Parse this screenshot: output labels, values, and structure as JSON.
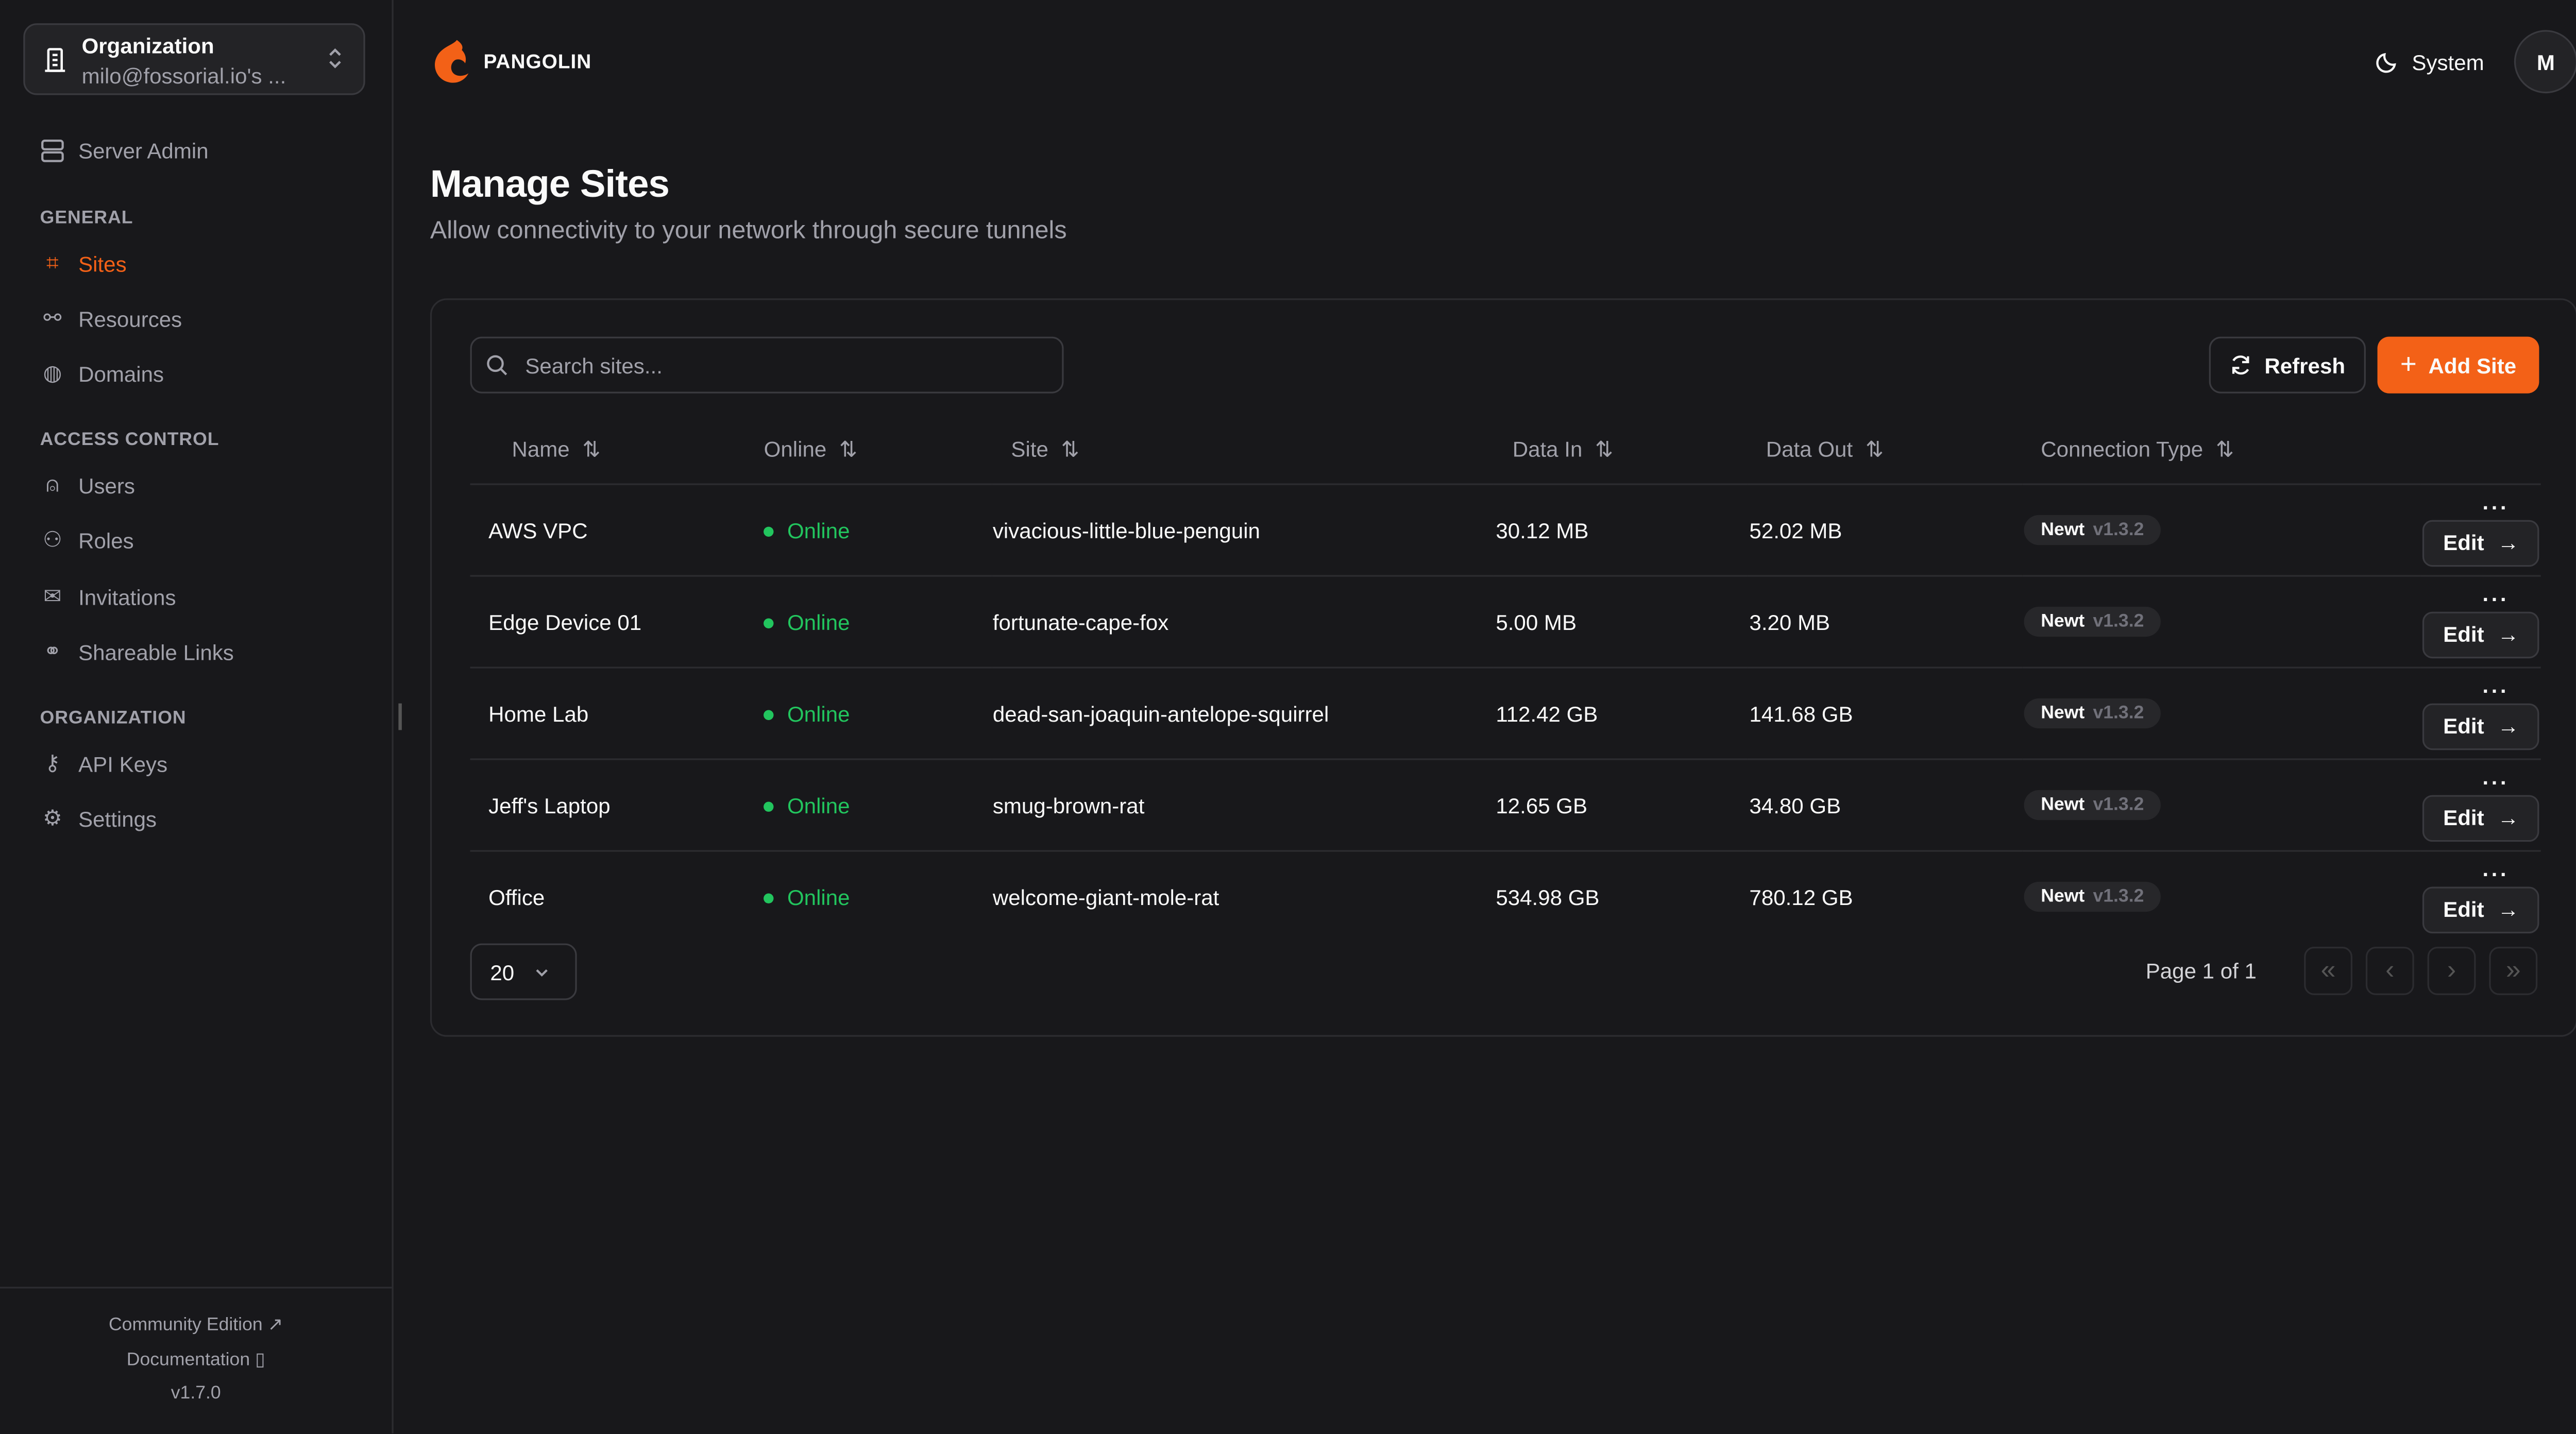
{
  "org": {
    "label": "Organization",
    "value": "milo@fossorial.io's ..."
  },
  "sidebar": {
    "server_admin": "Server Admin",
    "sections": [
      {
        "title": "GENERAL",
        "items": [
          {
            "label": "Sites",
            "icon": "sites-icon",
            "active": true
          },
          {
            "label": "Resources",
            "icon": "resources-icon"
          },
          {
            "label": "Domains",
            "icon": "globe-icon"
          }
        ]
      },
      {
        "title": "ACCESS CONTROL",
        "items": [
          {
            "label": "Users",
            "icon": "user-icon"
          },
          {
            "label": "Roles",
            "icon": "users-icon"
          },
          {
            "label": "Invitations",
            "icon": "mail-icon"
          },
          {
            "label": "Shareable Links",
            "icon": "link-icon"
          }
        ]
      },
      {
        "title": "ORGANIZATION",
        "items": [
          {
            "label": "API Keys",
            "icon": "key-icon"
          },
          {
            "label": "Settings",
            "icon": "gear-icon"
          }
        ]
      }
    ],
    "footer": {
      "community": "Community Edition",
      "docs": "Documentation",
      "version": "v1.7.0"
    }
  },
  "header": {
    "brand": "PANGOLIN",
    "theme": "System",
    "avatar": "M"
  },
  "page": {
    "title": "Manage Sites",
    "subtitle": "Allow connectivity to your network through secure tunnels"
  },
  "toolbar": {
    "search_placeholder": "Search sites...",
    "refresh": "Refresh",
    "add": "Add Site"
  },
  "table": {
    "columns": [
      "Name",
      "Online",
      "Site",
      "Data In",
      "Data Out",
      "Connection Type"
    ],
    "rows": [
      {
        "name": "AWS VPC",
        "online": "Online",
        "site": "vivacious-little-blue-penguin",
        "in": "30.12 MB",
        "out": "52.02 MB",
        "type": "Newt",
        "version": "v1.3.2"
      },
      {
        "name": "Edge Device 01",
        "online": "Online",
        "site": "fortunate-cape-fox",
        "in": "5.00 MB",
        "out": "3.20 MB",
        "type": "Newt",
        "version": "v1.3.2"
      },
      {
        "name": "Home Lab",
        "online": "Online",
        "site": "dead-san-joaquin-antelope-squirrel",
        "in": "112.42 GB",
        "out": "141.68 GB",
        "type": "Newt",
        "version": "v1.3.2"
      },
      {
        "name": "Jeff's Laptop",
        "online": "Online",
        "site": "smug-brown-rat",
        "in": "12.65 GB",
        "out": "34.80 GB",
        "type": "Newt",
        "version": "v1.3.2"
      },
      {
        "name": "Office",
        "online": "Online",
        "site": "welcome-giant-mole-rat",
        "in": "534.98 GB",
        "out": "780.12 GB",
        "type": "Newt",
        "version": "v1.3.2"
      }
    ],
    "edit": "Edit"
  },
  "pagination": {
    "page_size": "20",
    "info": "Page 1 of 1"
  },
  "colors": {
    "accent": "#f36117",
    "online": "#22c55e",
    "bg": "#18181b"
  }
}
